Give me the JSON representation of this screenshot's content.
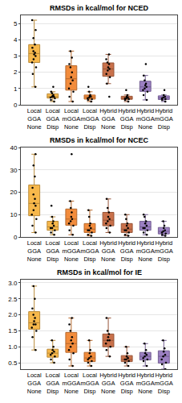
{
  "chart_data": [
    {
      "type": "box",
      "title": "RMSDs in kcal/mol for NCED",
      "categories": [
        "Local GGA None",
        "Local GGA Disp",
        "Local mGGA None",
        "Local mGGA Disp",
        "Hybrid GGA None",
        "Hybrid GGA Disp",
        "Hybrid mGGA None",
        "Hybrid mGGA Disp"
      ],
      "colors": [
        "#f7b84b",
        "#f7b84b",
        "#f28c3c",
        "#f28c3c",
        "#c9714b",
        "#c9714b",
        "#9b7fc2",
        "#9b7fc2"
      ],
      "values": [
        [
          1.1,
          1.9,
          2.3,
          2.6,
          2.8,
          3.0,
          3.1,
          3.2,
          3.3,
          3.5,
          3.7,
          4.1,
          4.6,
          5.2
        ],
        [
          0.2,
          0.3,
          0.4,
          0.45,
          0.5,
          0.5,
          0.55,
          0.6,
          0.7,
          0.8,
          1.1
        ],
        [
          0.2,
          0.5,
          0.8,
          1.0,
          1.3,
          1.5,
          1.7,
          2.0,
          2.3,
          2.5,
          2.9,
          3.3
        ],
        [
          0.2,
          0.3,
          0.35,
          0.4,
          0.45,
          0.5,
          0.55,
          0.6,
          0.8,
          1.1
        ],
        [
          0.5,
          1.3,
          1.7,
          1.9,
          2.1,
          2.2,
          2.3,
          2.5,
          2.6,
          2.8,
          3.1
        ],
        [
          0.2,
          0.3,
          0.35,
          0.4,
          0.4,
          0.45,
          0.5,
          0.6,
          0.9
        ],
        [
          0.3,
          0.6,
          0.8,
          0.9,
          1.0,
          1.1,
          1.2,
          1.3,
          1.5,
          1.8,
          2.5
        ],
        [
          0.2,
          0.3,
          0.35,
          0.4,
          0.45,
          0.5,
          0.6,
          0.9
        ]
      ],
      "ylim": [
        0,
        5.5
      ],
      "yticks": [
        0,
        1,
        2,
        3,
        4,
        5
      ],
      "grid": true
    },
    {
      "type": "box",
      "title": "RMSDs in kcal/mol for NCEC",
      "categories": [
        "Local GGA None",
        "Local GGA Disp",
        "Local mGGA None",
        "Local mGGA Disp",
        "Hybrid GGA None",
        "Hybrid GGA Disp",
        "Hybrid mGGA None",
        "Hybrid mGGA Disp"
      ],
      "colors": [
        "#f7b84b",
        "#f7b84b",
        "#f28c3c",
        "#f28c3c",
        "#c9714b",
        "#c9714b",
        "#9b7fc2",
        "#9b7fc2"
      ],
      "values": [
        [
          2,
          5,
          8,
          10,
          12,
          14,
          15,
          17,
          19,
          22,
          27,
          32,
          37
        ],
        [
          1,
          2,
          3,
          4,
          4,
          5,
          6,
          7,
          9,
          14
        ],
        [
          1,
          3,
          5,
          6,
          7,
          8,
          9,
          11,
          13,
          16,
          37
        ],
        [
          0.5,
          1,
          2,
          3,
          3,
          4,
          5,
          6,
          9,
          12
        ],
        [
          2,
          4,
          5,
          6,
          7,
          8,
          9,
          11,
          13,
          17
        ],
        [
          0.5,
          1,
          2,
          3,
          3,
          4,
          5,
          6,
          8,
          10
        ],
        [
          1,
          2,
          3,
          4,
          4,
          5,
          6,
          7,
          9,
          10
        ],
        [
          0.5,
          1,
          1.5,
          2,
          2.5,
          3,
          4,
          5,
          7
        ]
      ],
      "ylim": [
        0,
        40
      ],
      "yticks": [
        0,
        10,
        20,
        30,
        40
      ],
      "grid": true
    },
    {
      "type": "box",
      "title": "RMSDs in kcal/mol for IE",
      "categories": [
        "Local GGA None",
        "Local GGA Disp",
        "Local mGGA None",
        "Local mGGA Disp",
        "Hybrid GGA None",
        "Hybrid GGA Disp",
        "Hybrid mGGA None",
        "Hybrid mGGA Disp"
      ],
      "colors": [
        "#f7b84b",
        "#f7b84b",
        "#f28c3c",
        "#f28c3c",
        "#c9714b",
        "#c9714b",
        "#9b7fc2",
        "#9b7fc2"
      ],
      "values": [
        [
          0.9,
          1.3,
          1.5,
          1.6,
          1.7,
          1.7,
          1.8,
          1.9,
          2.0,
          2.2,
          2.5,
          2.9
        ],
        [
          0.5,
          0.6,
          0.7,
          0.75,
          0.8,
          0.85,
          0.9,
          1.0,
          1.2
        ],
        [
          0.4,
          0.6,
          0.8,
          0.9,
          1.0,
          1.1,
          1.2,
          1.3,
          1.5,
          1.7,
          1.9
        ],
        [
          0.4,
          0.5,
          0.55,
          0.6,
          0.65,
          0.7,
          0.8,
          0.9,
          1.2
        ],
        [
          0.7,
          0.9,
          1.0,
          1.1,
          1.2,
          1.2,
          1.3,
          1.4,
          1.5,
          1.9
        ],
        [
          0.4,
          0.5,
          0.55,
          0.6,
          0.6,
          0.65,
          0.7,
          0.8,
          1.0
        ],
        [
          0.4,
          0.55,
          0.6,
          0.65,
          0.7,
          0.75,
          0.8,
          0.9,
          1.1
        ],
        [
          0.3,
          0.45,
          0.5,
          0.6,
          0.7,
          0.75,
          0.85,
          0.95,
          1.2
        ]
      ],
      "ylim": [
        0.3,
        3.1
      ],
      "yticks": [
        0.5,
        {
          "value": 1,
          "label": "1.0"
        },
        1.5,
        {
          "value": 2,
          "label": "2.0"
        },
        2.5,
        {
          "value": 3,
          "label": "3.0"
        }
      ],
      "grid": true
    }
  ]
}
